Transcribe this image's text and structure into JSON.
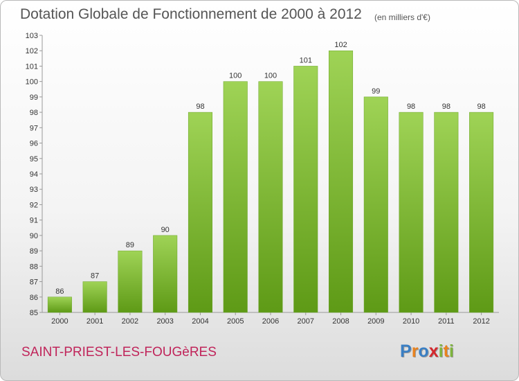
{
  "title": "Dotation Globale de Fonctionnement de 2000 à 2012",
  "unit_note": "(en milliers d'€)",
  "commune": "SAINT-PRIEST-LES-FOUGèRES",
  "logo": {
    "letters": [
      "P",
      "r",
      "o",
      "x",
      "i",
      "t",
      "i"
    ],
    "colors": [
      "#3a7fc4",
      "#e9821e",
      "#3a7fc4",
      "#d4282d",
      "#7db43c",
      "#e9821e",
      "#7db43c"
    ]
  },
  "colors": {
    "bar_top": "#9fd356",
    "bar_bottom": "#5e9a16",
    "axis": "#999999",
    "grid": "#d0d0d0",
    "text": "#333333"
  },
  "chart_data": {
    "type": "bar",
    "title": "Dotation Globale de Fonctionnement de 2000 à 2012",
    "categories": [
      "2000",
      "2001",
      "2002",
      "2003",
      "2004",
      "2005",
      "2006",
      "2007",
      "2008",
      "2009",
      "2010",
      "2011",
      "2012"
    ],
    "values": [
      86,
      87,
      89,
      90,
      98,
      100,
      100,
      101,
      102,
      99,
      98,
      98,
      98
    ],
    "ylim": [
      85,
      103
    ],
    "yticks": [
      85,
      86,
      87,
      88,
      89,
      90,
      91,
      92,
      93,
      94,
      95,
      96,
      97,
      98,
      99,
      100,
      101,
      102,
      103
    ],
    "grid": false,
    "xlabel": "",
    "ylabel": "",
    "data_labels": true
  }
}
